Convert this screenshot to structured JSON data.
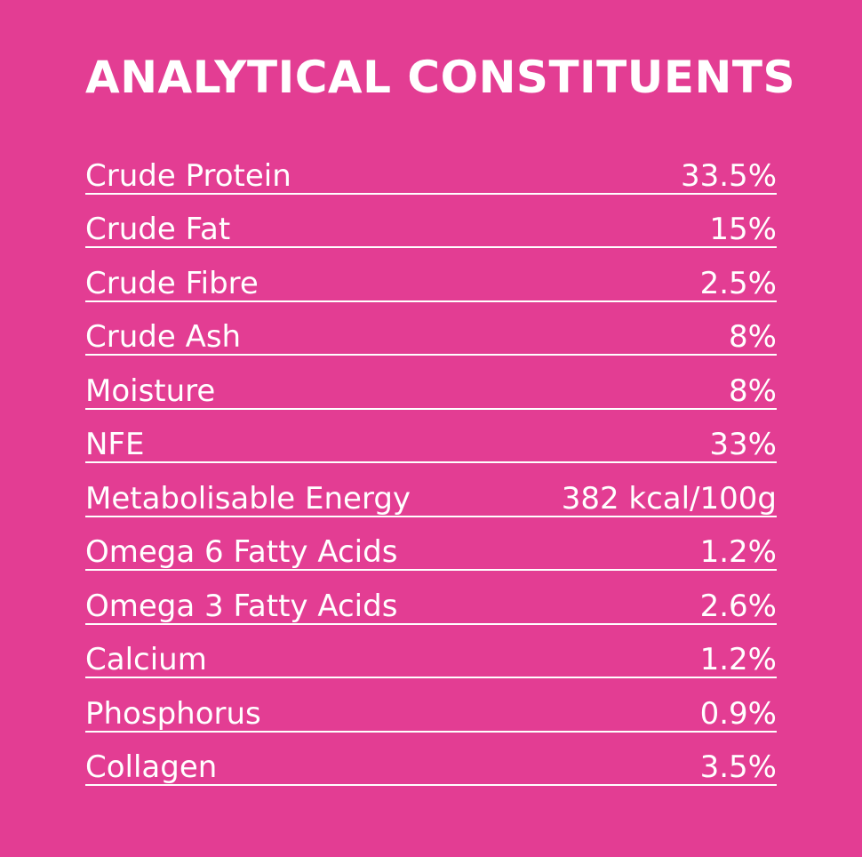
{
  "title": "ANALYTICAL CONSTITUENTS",
  "table": {
    "rows": [
      [
        "Crude Protein",
        "33.5%"
      ],
      [
        "Crude Fat",
        "15%"
      ],
      [
        "Crude Fibre",
        "2.5%"
      ],
      [
        "Crude Ash",
        "8%"
      ],
      [
        "Moisture",
        "8%"
      ],
      [
        "NFE",
        "33%"
      ],
      [
        "Metabolisable Energy",
        "382 kcal/100g"
      ],
      [
        "Omega 6 Fatty Acids",
        "1.2%"
      ],
      [
        "Omega 3 Fatty Acids",
        "2.6%"
      ],
      [
        "Calcium",
        "1.2%"
      ],
      [
        "Phosphorus",
        "0.9%"
      ],
      [
        "Collagen",
        "3.5%"
      ]
    ]
  }
}
